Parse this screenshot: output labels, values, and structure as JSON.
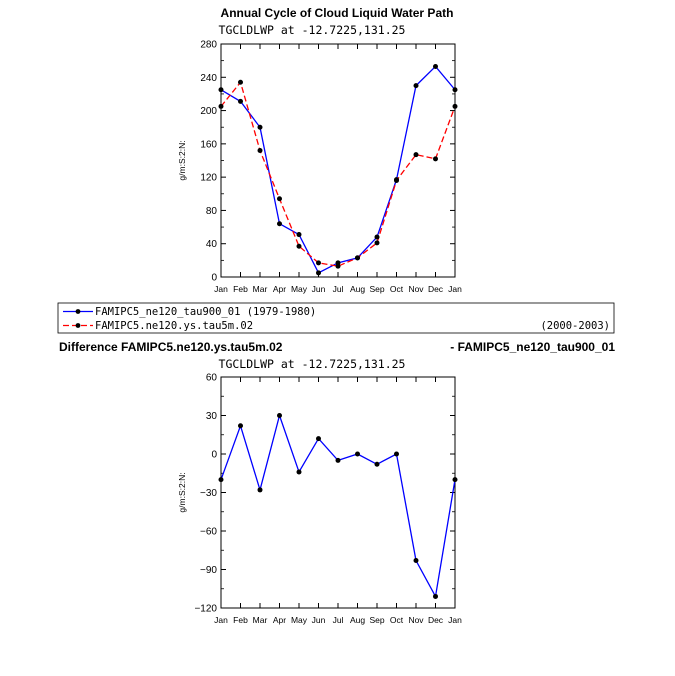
{
  "figure": {
    "title": "Annual Cycle of Cloud Liquid Water Path",
    "diff_title_left": "Difference FAMIPC5.ne120.ys.tau5m.02",
    "diff_title_right": "- FAMIPC5_ne120_tau900_01"
  },
  "legend": {
    "entries": [
      {
        "label": "FAMIPC5_ne120_tau900_01 (1979-1980)",
        "period": "",
        "color": "#0000ff",
        "dash": "solid"
      },
      {
        "label": "FAMIPC5.ne120.ys.tau5m.02",
        "period": "(2000-2003)",
        "color": "#ff0000",
        "dash": "dashed"
      }
    ]
  },
  "chart_data": [
    {
      "type": "line",
      "subtitle": "TGCLDLWP  at  -12.7225,131.25",
      "ylabel": "g/m:S:2:N:",
      "xlabel": "",
      "categories": [
        "Jan",
        "Feb",
        "Mar",
        "Apr",
        "May",
        "Jun",
        "Jul",
        "Aug",
        "Sep",
        "Oct",
        "Nov",
        "Dec",
        "Jan"
      ],
      "ylim": [
        0,
        280
      ],
      "yticks": [
        0,
        40,
        80,
        120,
        160,
        200,
        240,
        280
      ],
      "series": [
        {
          "name": "FAMIPC5_ne120_tau900_01 (1979-1980)",
          "color": "#0000ff",
          "dash": "solid",
          "values": [
            225,
            211,
            180,
            64,
            51,
            5,
            17,
            23,
            48,
            117,
            230,
            253,
            225
          ]
        },
        {
          "name": "FAMIPC5.ne120.ys.tau5m.02",
          "color": "#ff0000",
          "dash": "dashed",
          "values": [
            205,
            234,
            152,
            94,
            37,
            17,
            13,
            23,
            41,
            116,
            147,
            142,
            205
          ]
        }
      ]
    },
    {
      "type": "line",
      "subtitle": "TGCLDLWP  at  -12.7225,131.25",
      "ylabel": "g/m:S:2:N:",
      "xlabel": "",
      "categories": [
        "Jan",
        "Feb",
        "Mar",
        "Apr",
        "May",
        "Jun",
        "Jul",
        "Aug",
        "Sep",
        "Oct",
        "Nov",
        "Dec",
        "Jan"
      ],
      "ylim": [
        -120,
        60
      ],
      "yticks": [
        -120,
        -90,
        -60,
        -30,
        0,
        30,
        60
      ],
      "series": [
        {
          "name": "",
          "color": "#0000ff",
          "dash": "solid",
          "values": [
            -20,
            22,
            -28,
            30,
            -14,
            12,
            -5,
            0,
            -8,
            0,
            -83,
            -111,
            -20
          ]
        }
      ]
    }
  ]
}
